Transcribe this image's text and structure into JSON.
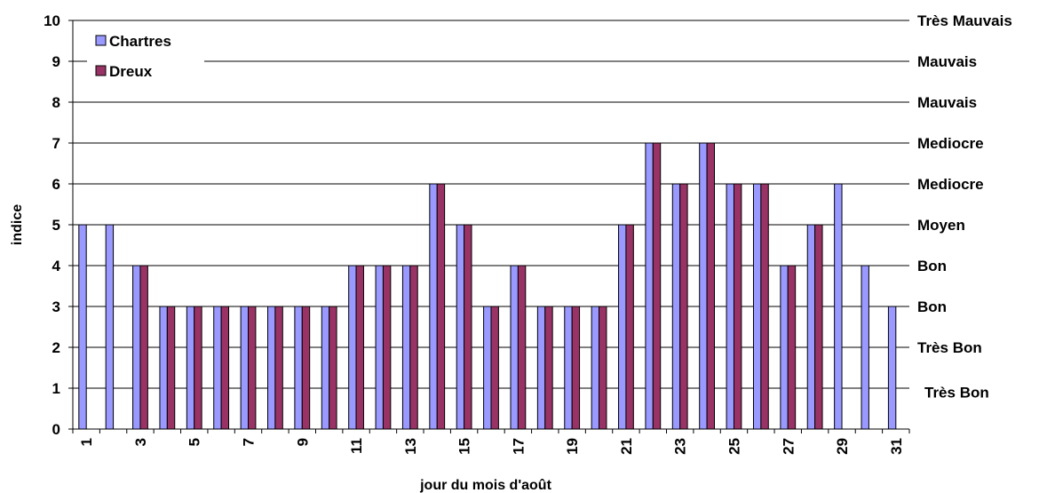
{
  "chart_data": {
    "type": "bar",
    "xlabel": "jour du mois d'août",
    "ylabel": "indice",
    "ylim": [
      0,
      10
    ],
    "yticks": [
      0,
      1,
      2,
      3,
      4,
      5,
      6,
      7,
      8,
      9,
      10
    ],
    "grid": true,
    "categories": [
      1,
      2,
      3,
      4,
      5,
      6,
      7,
      8,
      9,
      10,
      11,
      12,
      13,
      14,
      15,
      16,
      17,
      18,
      19,
      20,
      21,
      22,
      23,
      24,
      25,
      26,
      27,
      28,
      29,
      30,
      31
    ],
    "x_tick_labels": [
      "1",
      "3",
      "5",
      "7",
      "9",
      "11",
      "13",
      "15",
      "17",
      "19",
      "21",
      "23",
      "25",
      "27",
      "29",
      "31"
    ],
    "series": [
      {
        "name": "Chartres",
        "color": "#9999ff",
        "values": [
          5,
          5,
          4,
          3,
          3,
          3,
          3,
          3,
          3,
          3,
          4,
          4,
          4,
          6,
          5,
          3,
          4,
          3,
          3,
          3,
          5,
          7,
          6,
          7,
          6,
          6,
          4,
          5,
          6,
          4,
          3
        ]
      },
      {
        "name": "Dreux",
        "color": "#993366",
        "values": [
          null,
          null,
          4,
          3,
          3,
          3,
          3,
          3,
          3,
          3,
          4,
          4,
          4,
          6,
          5,
          3,
          4,
          3,
          3,
          3,
          5,
          7,
          6,
          7,
          6,
          6,
          4,
          5,
          null,
          null,
          null
        ]
      }
    ],
    "legend_position": "top-left",
    "right_labels": [
      {
        "value": 0.9,
        "text": "Très Bon"
      },
      {
        "value": 2,
        "text": "Très Bon"
      },
      {
        "value": 3,
        "text": "Bon"
      },
      {
        "value": 4,
        "text": "Bon"
      },
      {
        "value": 5,
        "text": "Moyen"
      },
      {
        "value": 6,
        "text": "Mediocre"
      },
      {
        "value": 7,
        "text": "Mediocre"
      },
      {
        "value": 8,
        "text": "Mauvais"
      },
      {
        "value": 9,
        "text": "Mauvais"
      },
      {
        "value": 10,
        "text": "Très Mauvais"
      }
    ]
  }
}
